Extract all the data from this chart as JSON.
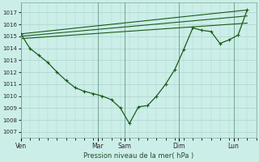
{
  "bg_color": "#cceee8",
  "line_color": "#1a5c1a",
  "grid_color": "#aad4cc",
  "xlabel": "Pression niveau de la mer( hPa )",
  "ylim": [
    1006.5,
    1017.8
  ],
  "yticks": [
    1007,
    1008,
    1009,
    1010,
    1011,
    1012,
    1013,
    1014,
    1015,
    1016,
    1017
  ],
  "day_labels": [
    "Ven",
    "Mar",
    "Sam",
    "Dim",
    "Lun"
  ],
  "day_x": [
    0,
    8.5,
    11.5,
    17.5,
    23.5
  ],
  "xlim": [
    0,
    26
  ],
  "main_x": [
    0,
    1,
    2,
    3,
    4,
    5,
    6,
    7,
    8,
    9,
    10,
    11,
    12,
    13,
    14,
    15,
    16,
    17,
    18,
    19,
    20,
    21,
    22,
    23,
    24,
    25
  ],
  "main_y": [
    1015.2,
    1014.0,
    1013.4,
    1012.8,
    1012.0,
    1011.3,
    1010.7,
    1010.4,
    1010.2,
    1010.0,
    1009.7,
    1009.0,
    1007.7,
    1009.1,
    1009.2,
    1010.0,
    1011.0,
    1012.2,
    1013.9,
    1015.7,
    1015.5,
    1015.4,
    1014.4,
    1014.7,
    1015.1,
    1017.2
  ],
  "line2_x": [
    0,
    25
  ],
  "line2_y": [
    1015.2,
    1017.2
  ],
  "line3_x": [
    0,
    25
  ],
  "line3_y": [
    1015.0,
    1016.7
  ],
  "line4_x": [
    0,
    25
  ],
  "line4_y": [
    1014.8,
    1016.1
  ],
  "vline_x": [
    0,
    8.5,
    11.5,
    17.5,
    23.5
  ]
}
